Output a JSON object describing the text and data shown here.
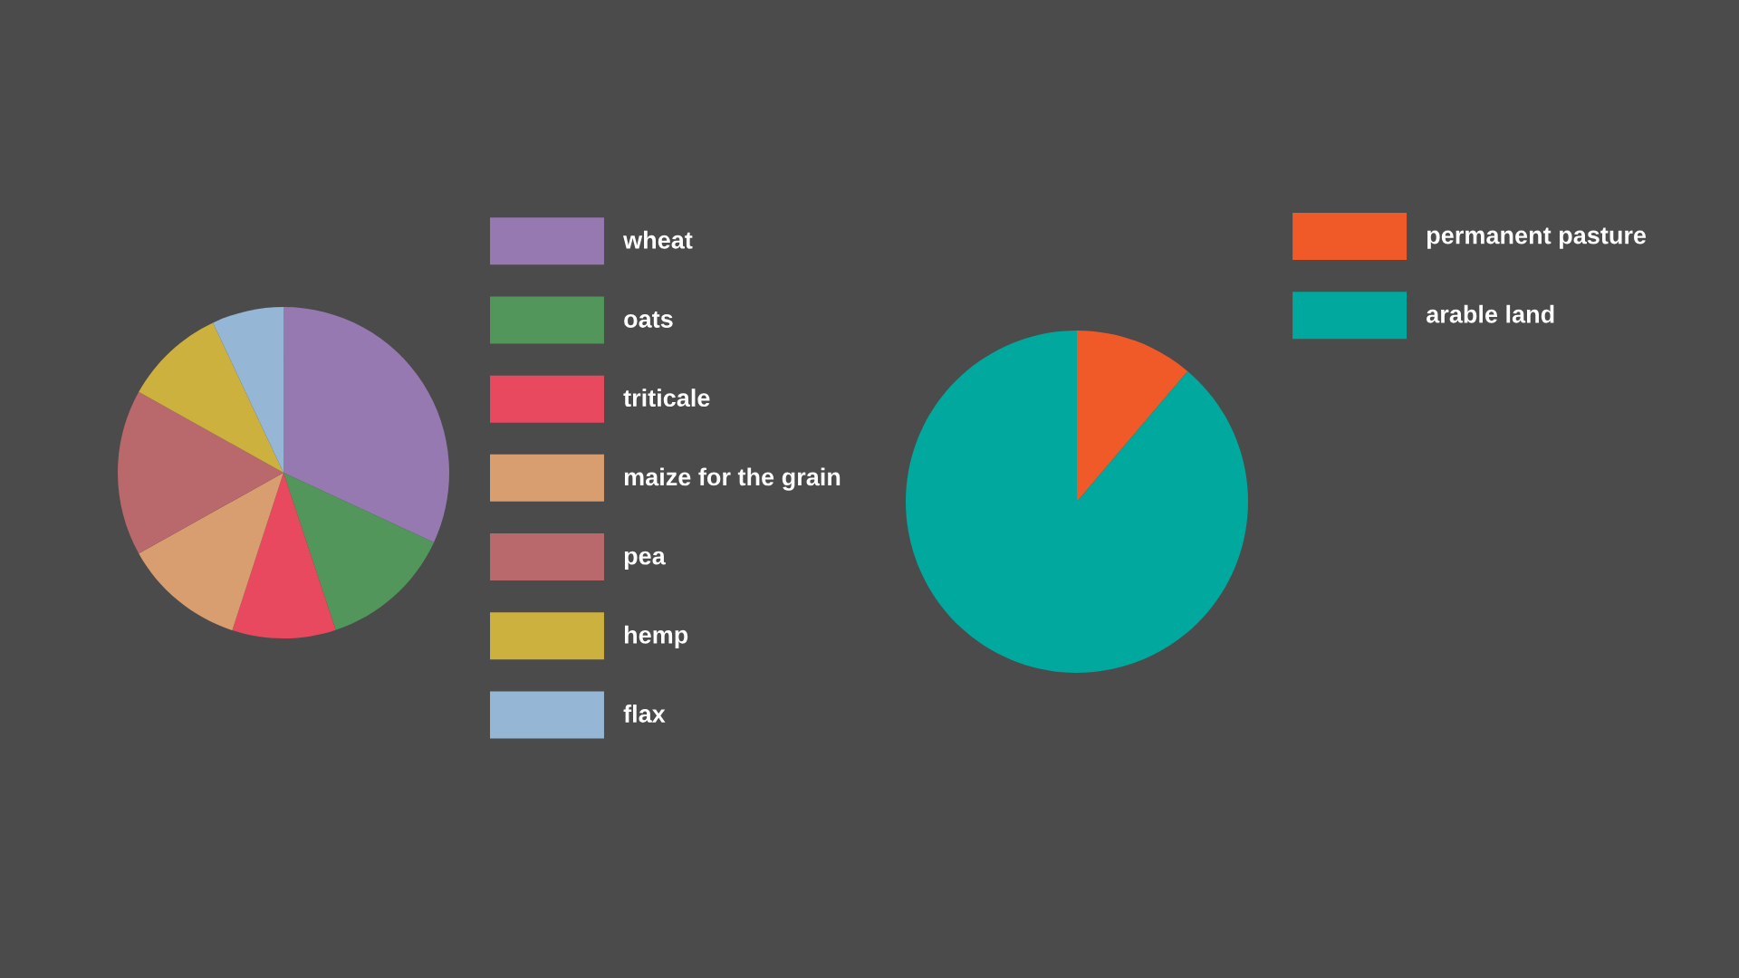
{
  "chart_data": [
    {
      "type": "pie",
      "categories": [
        "wheat",
        "oats",
        "triticale",
        "maize for the grain",
        "pea",
        "hemp",
        "flax"
      ],
      "values": [
        31.9,
        13.0,
        10.1,
        11.9,
        16.2,
        9.9,
        7.0
      ],
      "colors": [
        "#9779b2",
        "#52965b",
        "#e8495e",
        "#d99e6f",
        "#b9696c",
        "#ccb13f",
        "#96b6d6"
      ],
      "legend": "right"
    },
    {
      "type": "pie",
      "categories": [
        "permanent pasture",
        "arable land"
      ],
      "values": [
        11.2,
        88.8
      ],
      "colors": [
        "#f05a28",
        "#00a89d"
      ],
      "legend": "top right"
    }
  ]
}
